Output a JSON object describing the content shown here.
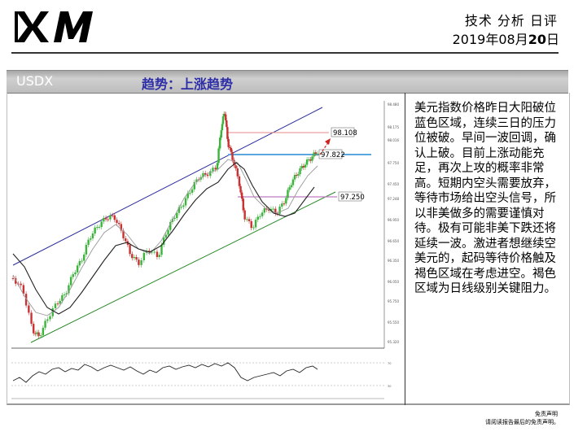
{
  "header": {
    "logo_text": "XM",
    "report_type": "技术 分析 日评",
    "date_prefix": "2019年08月",
    "date_day": "20",
    "date_suffix": "日"
  },
  "section": {
    "symbol": "USDX",
    "trend": "趋势：上涨趋势"
  },
  "chart_data": {
    "type": "line",
    "title": "",
    "symbol": "USDX",
    "price_axis_range": [
      95.32,
      98.48
    ],
    "levels": [
      {
        "label": "98.108",
        "value": 98.108,
        "color": "#e88a8a"
      },
      {
        "label": "97.822",
        "value": 97.822,
        "color": "#5aa7e0"
      },
      {
        "label": "97.250",
        "value": 97.25,
        "color": "#c07bc0"
      }
    ],
    "channel_lines": [
      {
        "name": "",
        "color": "#2e2e9e"
      },
      {
        "name": "",
        "color": "#2e8b2e"
      }
    ],
    "indicator_panel": "oscillator",
    "grid": false
  },
  "commentary": "美元指数价格昨日大阳破位蓝色区域，连续三日的压力位被破。早间一波回调，确认上破。目前上涨动能充足，再次上攻的概率非常高。短期内空头需要放弃，等待市场给出空头信号，所以非美做多的需要谨慎对待。极有可能非美下跌还将延续一波。激进者想继续空美元的，起码等待价格触及褐色区域在考虑进空。褐色区域为日线级别关键阻力。",
  "footer": {
    "disclaimer_title": "免责声明",
    "disclaimer_text": "请阅读报告最后的免责声明。"
  },
  "colors": {
    "logo": "#000000",
    "band_text": "#ffffff",
    "trend_text": "#2d2da8",
    "bull_candle": "#3cb43c",
    "bear_candle": "#c83232"
  }
}
